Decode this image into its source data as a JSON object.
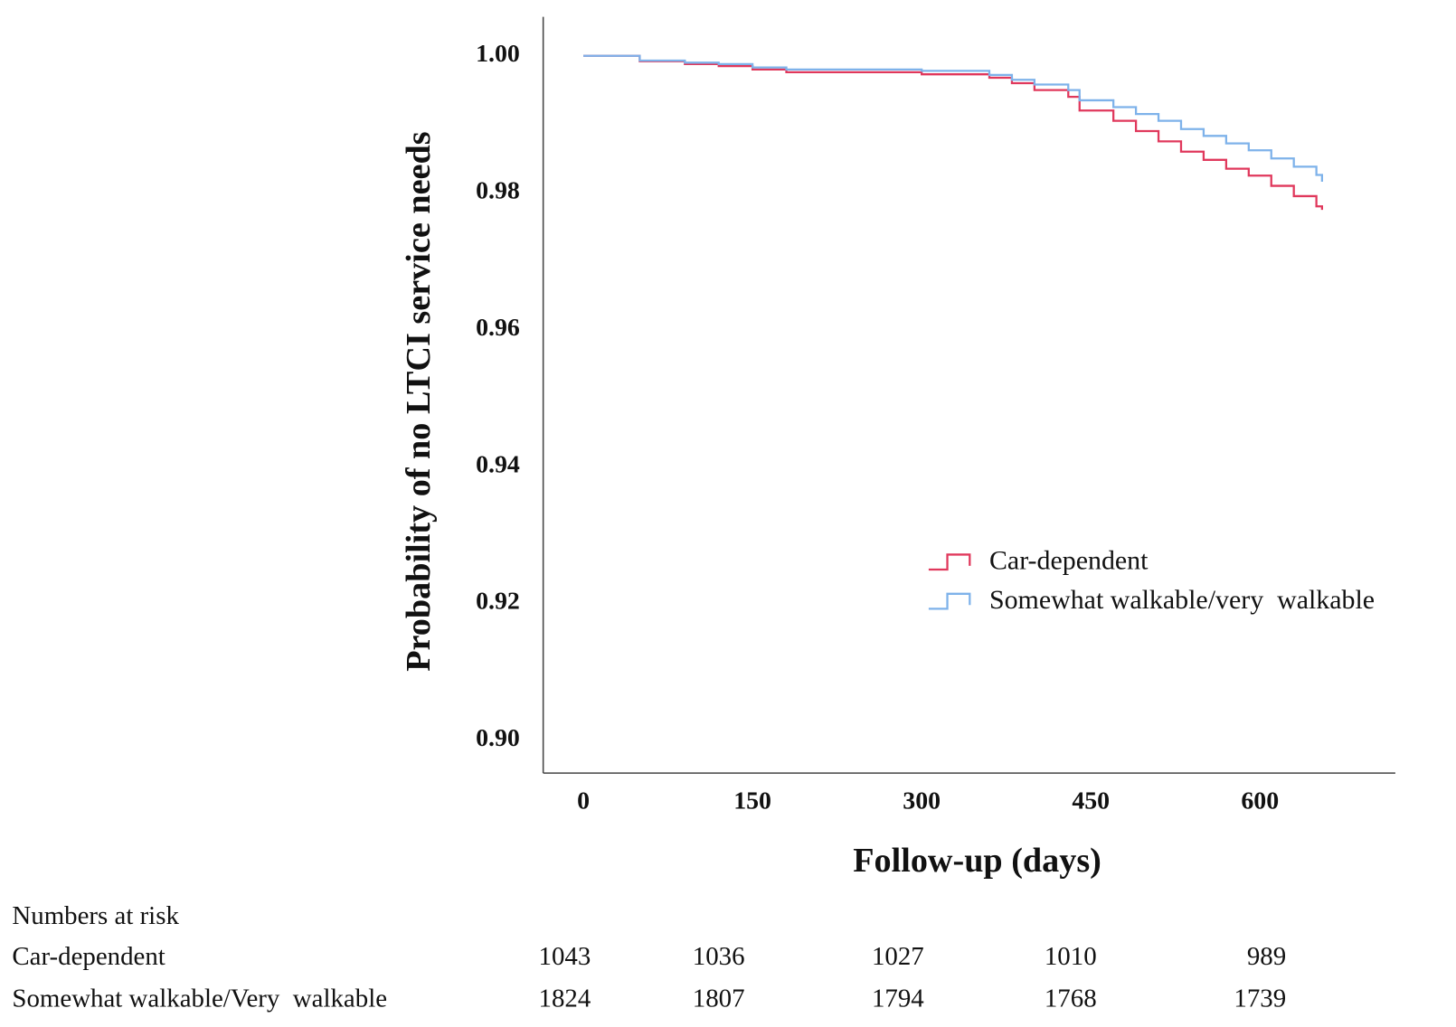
{
  "chart_data": {
    "type": "line",
    "step": true,
    "x_label": "Follow-up (days)",
    "y_label": "Probability of no LTCI service needs",
    "xlim": [
      -35.6,
      720
    ],
    "ylim": [
      0.8952,
      1.0057
    ],
    "xticks": [
      0,
      150,
      300,
      450,
      600
    ],
    "yticks": [
      {
        "value": 0.9,
        "label": "0.90"
      },
      {
        "value": 0.92,
        "label": "0.92"
      },
      {
        "value": 0.94,
        "label": "0.94"
      },
      {
        "value": 0.96,
        "label": "0.96"
      },
      {
        "value": 0.98,
        "label": "0.98"
      },
      {
        "value": 1.0,
        "label": "1.00"
      }
    ],
    "grid": false,
    "legend": "center right",
    "x": [
      0,
      40,
      50,
      90,
      120,
      150,
      180,
      300,
      350,
      360,
      380,
      400,
      430,
      440,
      470,
      490,
      510,
      530,
      550,
      570,
      590,
      610,
      630,
      650,
      655
    ],
    "series": [
      {
        "name": "Car-dependent",
        "color": "#e0385c",
        "values": [
          1.0,
          1.0,
          0.9992,
          0.9988,
          0.9985,
          0.998,
          0.9976,
          0.9973,
          0.9973,
          0.9968,
          0.996,
          0.995,
          0.994,
          0.992,
          0.9905,
          0.989,
          0.9875,
          0.986,
          0.9848,
          0.9835,
          0.9825,
          0.981,
          0.9795,
          0.978,
          0.9775
        ]
      },
      {
        "name": "Somewhat walkable/very  walkable",
        "color": "#7eb2ea",
        "values": [
          1.0,
          1.0,
          0.9993,
          0.999,
          0.9988,
          0.9983,
          0.998,
          0.9978,
          0.9978,
          0.9972,
          0.9965,
          0.9958,
          0.995,
          0.9935,
          0.9925,
          0.9915,
          0.9905,
          0.9893,
          0.9883,
          0.9872,
          0.9862,
          0.985,
          0.9838,
          0.9826,
          0.9816
        ]
      }
    ],
    "risk_table": {
      "title": "Numbers at risk",
      "rows": [
        {
          "name": "Car-dependent",
          "values": [
            "1043",
            "1036",
            "1027",
            "1010",
            "989"
          ]
        },
        {
          "name": "Somewhat walkable/Very  walkable",
          "values": [
            "1824",
            "1807",
            "1794",
            "1768",
            "1739"
          ]
        }
      ]
    }
  }
}
